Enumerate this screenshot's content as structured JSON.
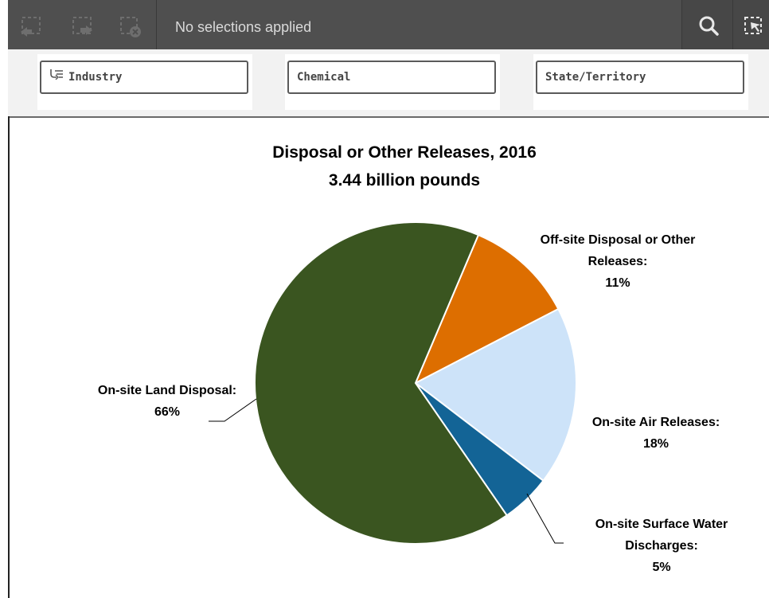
{
  "toolbar": {
    "selection_status": "No selections applied",
    "left_icons": [
      "step-back-icon",
      "step-forward-icon",
      "clear-selections-icon"
    ],
    "right_icons": [
      "search-icon",
      "selections-tool-icon"
    ]
  },
  "filters": [
    {
      "label": "Industry",
      "icon": "drill-down-icon"
    },
    {
      "label": "Chemical"
    },
    {
      "label": "State/Territory"
    }
  ],
  "chart_data": {
    "type": "pie",
    "title": "Disposal or Other Releases, 2016",
    "subtitle": "3.44 billion pounds",
    "slices": [
      {
        "label": "Off-site Disposal or Other Releases:",
        "percent_label": "11%",
        "value": 11,
        "color": "#dd6e00"
      },
      {
        "label": "On-site Air Releases:",
        "percent_label": "18%",
        "value": 18,
        "color": "#cde3f9"
      },
      {
        "label": "On-site Surface Water Discharges:",
        "percent_label": "5%",
        "value": 5,
        "color": "#136496"
      },
      {
        "label": "On-site Land Disposal:",
        "percent_label": "66%",
        "value": 66,
        "color": "#3a5520"
      }
    ]
  }
}
